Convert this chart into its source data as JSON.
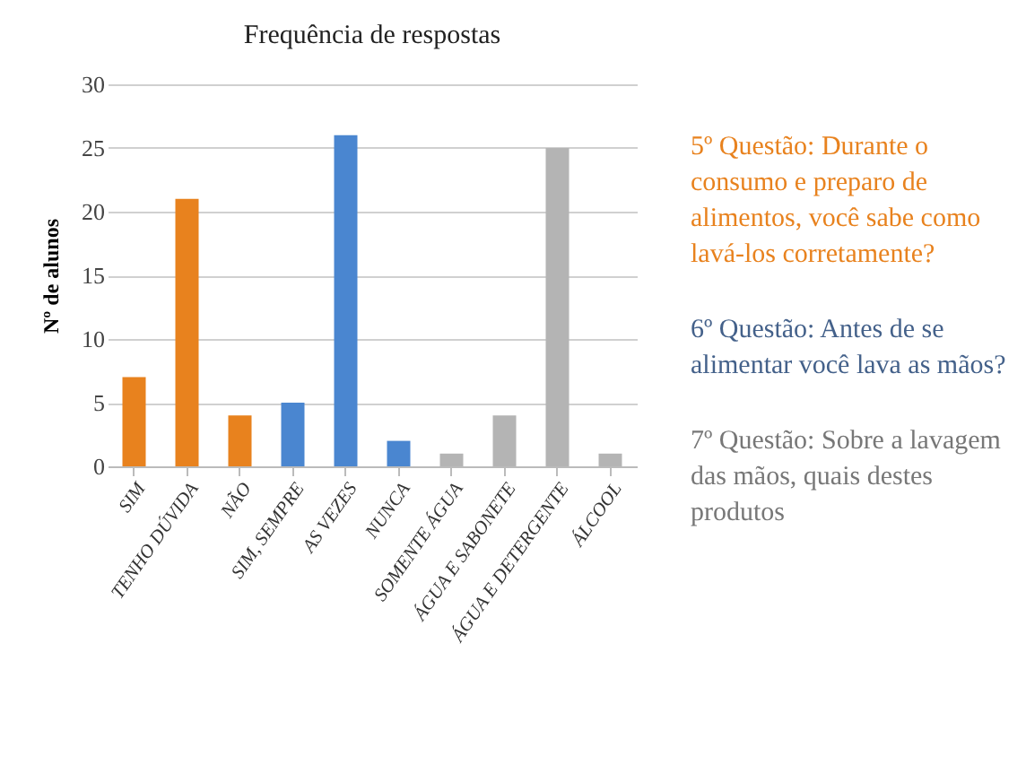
{
  "chart_data": {
    "type": "bar",
    "title": "Frequência de respostas",
    "ylabel": "Nº de alunos",
    "categories": [
      "SIM",
      "TENHO DÚVIDA",
      "NÃO",
      "SIM, SEMPRE",
      "AS VEZES",
      "NUNCA",
      "SOMENTE ÁGUA",
      "ÁGUA E SABONETE",
      "ÁGUA E DETERGENTE",
      "ÁLCOOL"
    ],
    "values": [
      7,
      21,
      4,
      5,
      26,
      2,
      1,
      4,
      25,
      1
    ],
    "colors": [
      "#e8821e",
      "#e8821e",
      "#e8821e",
      "#4a86d0",
      "#4a86d0",
      "#4a86d0",
      "#b4b4b4",
      "#b4b4b4",
      "#b4b4b4",
      "#b4b4b4"
    ],
    "ylim": [
      0,
      30
    ],
    "yticks": [
      0,
      5,
      10,
      15,
      20,
      25,
      30
    ],
    "grid": "y",
    "annotations": [
      "5º Questão: Durante  o consumo  e preparo de alimentos,  você sabe como lavá-los corretamente?",
      "6º Questão: Antes de se alimentar você lava as mãos?",
      "7º Questão: Sobre a lavagem das mãos, quais destes produtos"
    ]
  }
}
